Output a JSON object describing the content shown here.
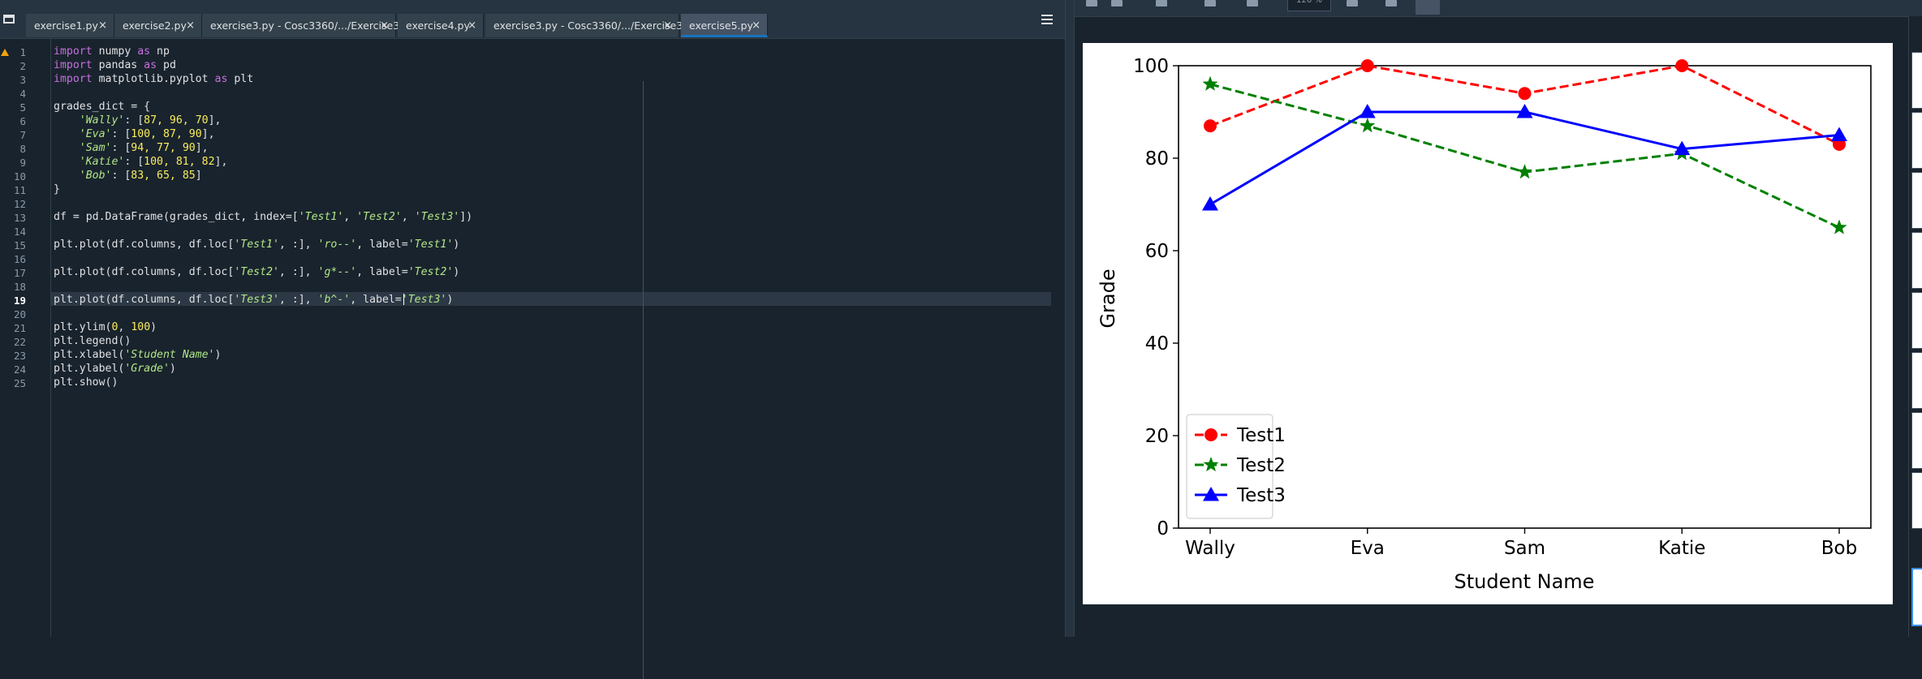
{
  "editor": {
    "tabs": [
      {
        "label": "exercise1.py",
        "close": "×"
      },
      {
        "label": "exercise2.py",
        "close": "×"
      },
      {
        "label": "exercise3.py - Cosc3360/.../Exercise3",
        "close": "×"
      },
      {
        "label": "exercise4.py",
        "close": "×"
      },
      {
        "label": "exercise3.py - Cosc3360/.../Exercise3",
        "close": "×"
      },
      {
        "label": "exercise5.py",
        "close": "×"
      }
    ],
    "active_tab": 5,
    "current_line": 19,
    "line_numbers": [
      "1",
      "2",
      "3",
      "4",
      "5",
      "6",
      "7",
      "8",
      "9",
      "10",
      "11",
      "12",
      "13",
      "14",
      "15",
      "16",
      "17",
      "18",
      "19",
      "20",
      "21",
      "22",
      "23",
      "24",
      "25"
    ],
    "code": {
      "l1": {
        "kw1": "import",
        "t1": " numpy ",
        "kw2": "as",
        "t2": " np"
      },
      "l2": {
        "kw1": "import",
        "t1": " pandas ",
        "kw2": "as",
        "t2": " pd"
      },
      "l3": {
        "kw1": "import",
        "t1": " matplotlib.pyplot ",
        "kw2": "as",
        "t2": " plt"
      },
      "l5": "grades_dict = {",
      "l6": {
        "indent": "    ",
        "key": "'Wally'",
        "mid": ": [",
        "vals": "87, 96, 70",
        "end": "],"
      },
      "l7": {
        "indent": "    ",
        "key": "'Eva'",
        "mid": ": [",
        "vals": "100, 87, 90",
        "end": "],"
      },
      "l8": {
        "indent": "    ",
        "key": "'Sam'",
        "mid": ": [",
        "vals": "94, 77, 90",
        "end": "],"
      },
      "l9": {
        "indent": "    ",
        "key": "'Katie'",
        "mid": ": [",
        "vals": "100, 81, 82",
        "end": "],"
      },
      "l10": {
        "indent": "    ",
        "key": "'Bob'",
        "mid": ": [",
        "vals": "83, 65, 85",
        "end": "]"
      },
      "l11": "}",
      "l13": {
        "a": "df = pd.DataFrame(grades_dict, index=[",
        "s1": "'Test1'",
        "c1": ", ",
        "s2": "'Test2'",
        "c2": ", ",
        "s3": "'Test3'",
        "b": "])"
      },
      "l15": {
        "a": "plt.plot(df.columns, df.loc[",
        "s1": "'Test1'",
        "b": ", :], ",
        "s2": "'ro--'",
        "c": ", label=",
        "s3": "'Test1'",
        "d": ")"
      },
      "l17": {
        "a": "plt.plot(df.columns, df.loc[",
        "s1": "'Test2'",
        "b": ", :], ",
        "s2": "'g*--'",
        "c": ", label=",
        "s3": "'Test2'",
        "d": ")"
      },
      "l19": {
        "a": "plt.plot(df.columns, df.loc[",
        "s1": "'Test3'",
        "b": ", :], ",
        "s2": "'b^-'",
        "c": ", label=",
        "s3": "'Test3'",
        "d": ")"
      },
      "l21": {
        "a": "plt.ylim(",
        "n1": "0",
        "c": ", ",
        "n2": "100",
        "b": ")"
      },
      "l22": "plt.legend()",
      "l23": {
        "a": "plt.xlabel(",
        "s": "'Student Name'",
        "b": ")"
      },
      "l24": {
        "a": "plt.ylabel(",
        "s": "'Grade'",
        "b": ")"
      },
      "l25": "plt.show()"
    }
  },
  "plots": {
    "zoom": "120 %"
  },
  "chart_data": {
    "type": "line",
    "categories": [
      "Wally",
      "Eva",
      "Sam",
      "Katie",
      "Bob"
    ],
    "series": [
      {
        "name": "Test1",
        "values": [
          87,
          100,
          94,
          100,
          83
        ],
        "color": "#ff0000",
        "marker": "circle",
        "dash": "dashed"
      },
      {
        "name": "Test2",
        "values": [
          96,
          87,
          77,
          81,
          65
        ],
        "color": "#008000",
        "marker": "star",
        "dash": "dashed"
      },
      {
        "name": "Test3",
        "values": [
          70,
          90,
          90,
          82,
          85
        ],
        "color": "#0000ff",
        "marker": "triangle",
        "dash": "solid"
      }
    ],
    "xlabel": "Student Name",
    "ylabel": "Grade",
    "ylim": [
      0,
      100
    ],
    "yticks": [
      "0",
      "20",
      "40",
      "60",
      "80",
      "100"
    ],
    "legend_position": "lower-left",
    "grid": false
  }
}
